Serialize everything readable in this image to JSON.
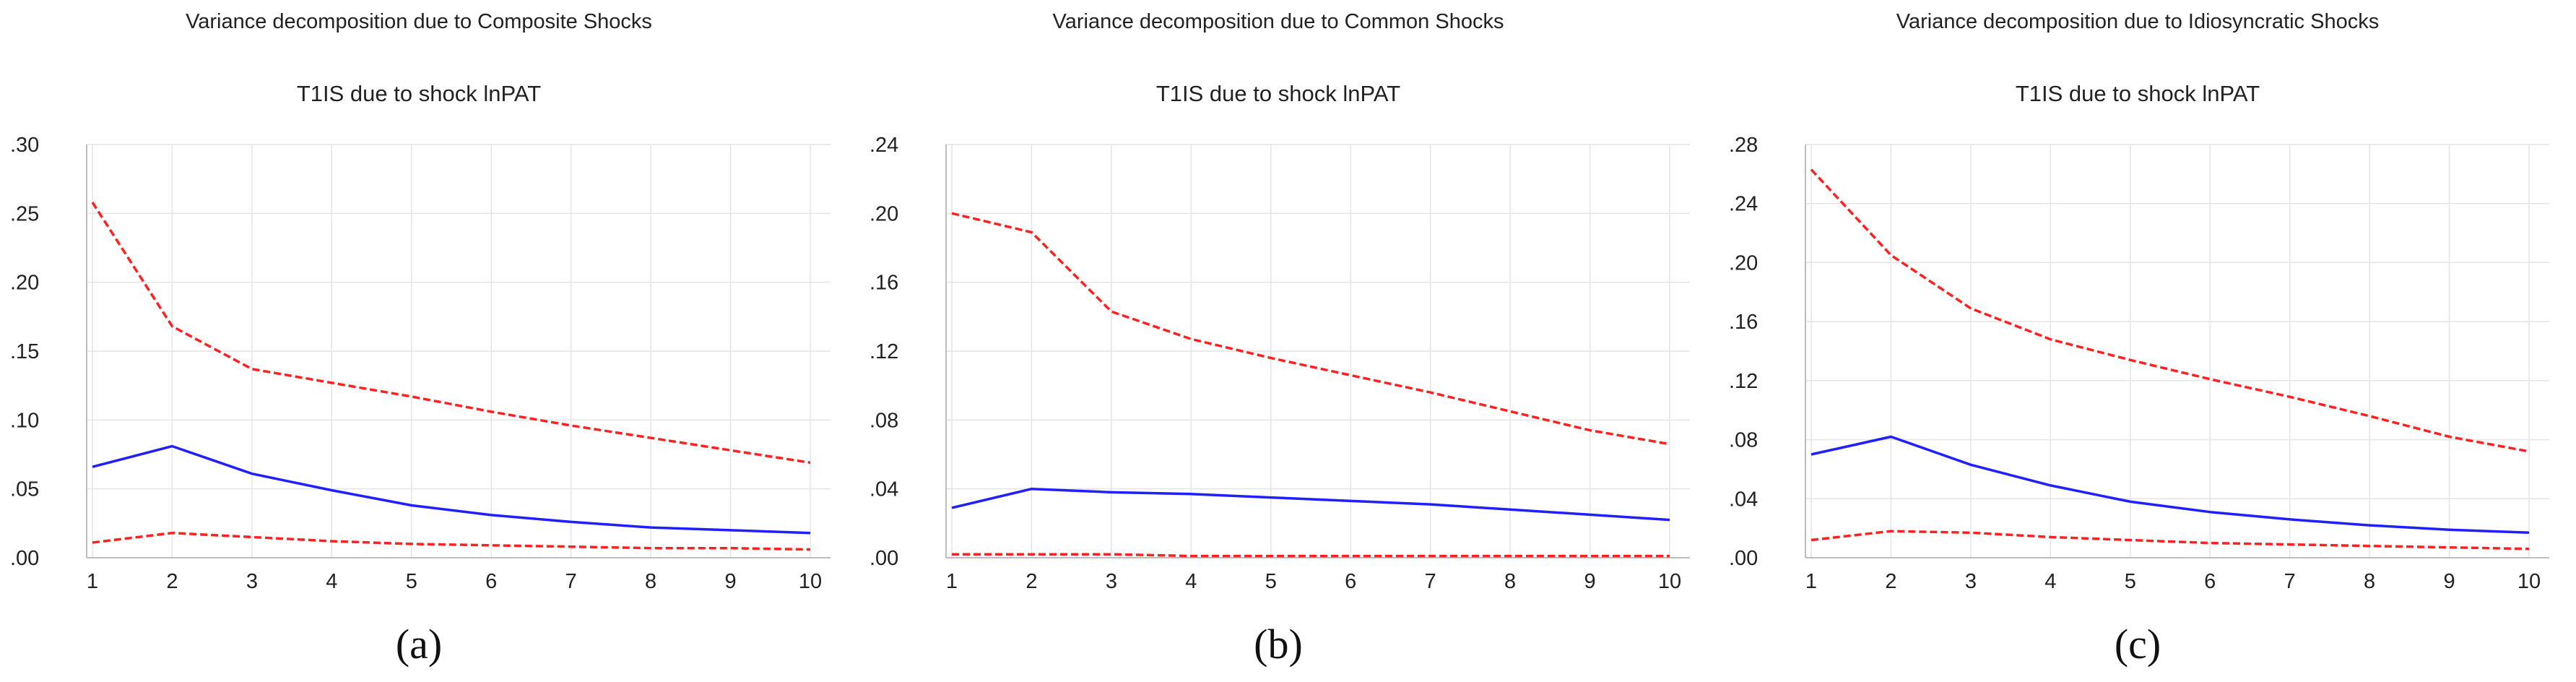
{
  "chart_data": [
    {
      "type": "line",
      "title": "Variance decomposition due to Composite Shocks",
      "subtitle": "T1IS due to shock lnPAT",
      "caption": "(a)",
      "x": [
        1,
        2,
        3,
        4,
        5,
        6,
        7,
        8,
        9,
        10
      ],
      "ylim": [
        0,
        0.3
      ],
      "yticks": [
        ".00",
        ".05",
        ".10",
        ".15",
        ".20",
        ".25",
        ".30"
      ],
      "ytick_values": [
        0,
        0.05,
        0.1,
        0.15,
        0.2,
        0.25,
        0.3
      ],
      "grid": true,
      "series": [
        {
          "role": "estimate",
          "color": "#1f1fff",
          "style": "solid",
          "values": [
            0.066,
            0.081,
            0.061,
            0.049,
            0.038,
            0.031,
            0.026,
            0.022,
            0.02,
            0.018
          ]
        },
        {
          "role": "upper",
          "color": "#ff2020",
          "style": "dashed",
          "values": [
            0.258,
            0.168,
            0.137,
            0.127,
            0.117,
            0.106,
            0.096,
            0.087,
            0.078,
            0.069
          ]
        },
        {
          "role": "lower",
          "color": "#ff2020",
          "style": "dashed",
          "values": [
            0.011,
            0.018,
            0.015,
            0.012,
            0.01,
            0.009,
            0.008,
            0.007,
            0.007,
            0.006
          ]
        }
      ]
    },
    {
      "type": "line",
      "title": "Variance decomposition due to Common Shocks",
      "subtitle": "T1IS due to shock lnPAT",
      "caption": "(b)",
      "x": [
        1,
        2,
        3,
        4,
        5,
        6,
        7,
        8,
        9,
        10
      ],
      "ylim": [
        0,
        0.24
      ],
      "yticks": [
        ".00",
        ".04",
        ".08",
        ".12",
        ".16",
        ".20",
        ".24"
      ],
      "ytick_values": [
        0,
        0.04,
        0.08,
        0.12,
        0.16,
        0.2,
        0.24
      ],
      "grid": true,
      "series": [
        {
          "role": "estimate",
          "color": "#1f1fff",
          "style": "solid",
          "values": [
            0.029,
            0.04,
            0.038,
            0.037,
            0.035,
            0.033,
            0.031,
            0.028,
            0.025,
            0.022
          ]
        },
        {
          "role": "upper",
          "color": "#ff2020",
          "style": "dashed",
          "values": [
            0.2,
            0.189,
            0.143,
            0.127,
            0.116,
            0.106,
            0.096,
            0.085,
            0.074,
            0.066
          ]
        },
        {
          "role": "lower",
          "color": "#ff2020",
          "style": "dashed",
          "values": [
            0.002,
            0.002,
            0.002,
            0.001,
            0.001,
            0.001,
            0.001,
            0.001,
            0.001,
            0.001
          ]
        }
      ]
    },
    {
      "type": "line",
      "title": "Variance decomposition due to Idiosyncratic Shocks",
      "subtitle": "T1IS due to shock lnPAT",
      "caption": "(c)",
      "x": [
        1,
        2,
        3,
        4,
        5,
        6,
        7,
        8,
        9,
        10
      ],
      "ylim": [
        0,
        0.28
      ],
      "yticks": [
        ".00",
        ".04",
        ".08",
        ".12",
        ".16",
        ".20",
        ".24",
        ".28"
      ],
      "ytick_values": [
        0,
        0.04,
        0.08,
        0.12,
        0.16,
        0.2,
        0.24,
        0.28
      ],
      "grid": true,
      "series": [
        {
          "role": "estimate",
          "color": "#1f1fff",
          "style": "solid",
          "values": [
            0.07,
            0.082,
            0.063,
            0.049,
            0.038,
            0.031,
            0.026,
            0.022,
            0.019,
            0.017
          ]
        },
        {
          "role": "upper",
          "color": "#ff2020",
          "style": "dashed",
          "values": [
            0.263,
            0.205,
            0.169,
            0.148,
            0.134,
            0.121,
            0.109,
            0.096,
            0.082,
            0.072
          ]
        },
        {
          "role": "lower",
          "color": "#ff2020",
          "style": "dashed",
          "values": [
            0.012,
            0.018,
            0.017,
            0.014,
            0.012,
            0.01,
            0.009,
            0.008,
            0.007,
            0.006
          ]
        }
      ]
    }
  ]
}
